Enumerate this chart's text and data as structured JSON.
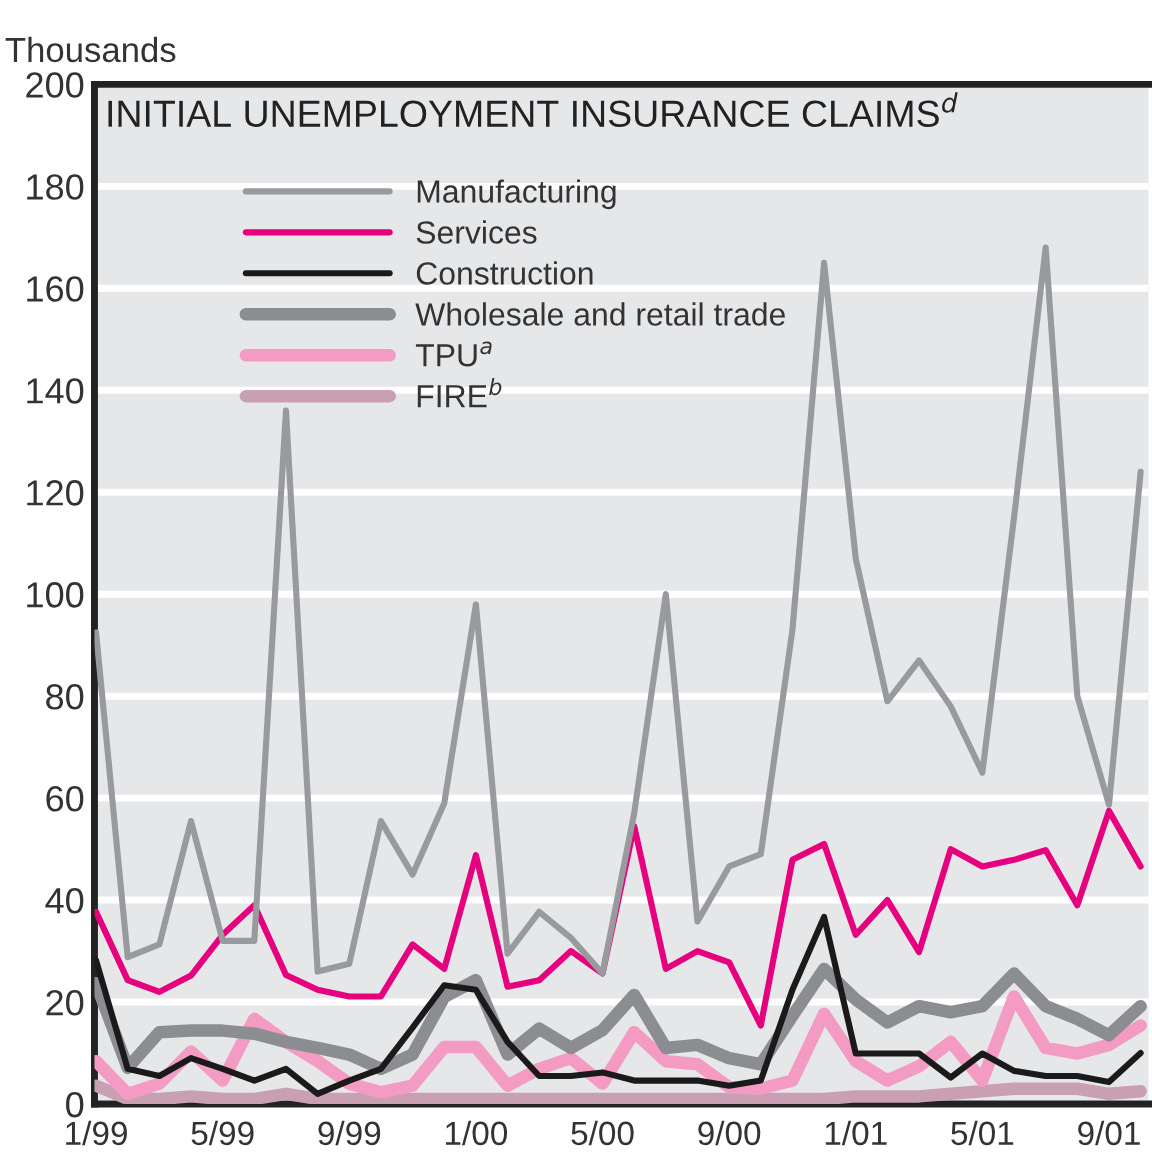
{
  "chart_data": {
    "type": "line",
    "title": "INITIAL UNEMPLOYMENT INSURANCE CLAIMS$^{d}$",
    "ylabel": "Thousands",
    "categories": [
      "1/99",
      null,
      null,
      null,
      "5/99",
      null,
      null,
      null,
      "9/99",
      null,
      null,
      null,
      "1/00",
      null,
      null,
      null,
      "5/00",
      null,
      null,
      null,
      "9/00",
      null,
      null,
      null,
      "1/01",
      null,
      null,
      null,
      "5/01",
      null,
      null,
      null,
      "9/01",
      null
    ],
    "series": [
      {
        "name": "Manufacturing",
        "color": "#999a9e",
        "values": [
          92.5,
          28.8,
          31.3,
          55.5,
          32,
          32,
          136,
          26,
          27.5,
          55.5,
          45,
          59,
          98,
          29.5,
          37.7,
          32.6,
          25.6,
          57,
          100,
          35.8,
          46.6,
          49,
          93,
          165,
          107,
          79,
          87,
          78,
          65,
          115,
          168,
          80,
          58.7,
          124
        ]
      },
      {
        "name": "Services",
        "color": "#e6007e",
        "values": [
          37.7,
          24.3,
          22,
          25.2,
          33.2,
          39,
          25.3,
          22.4,
          21.1,
          21.1,
          31.3,
          26.5,
          48.8,
          23,
          24.3,
          30,
          25.6,
          54.5,
          26.5,
          30,
          27.8,
          15.4,
          47.9,
          51,
          33.2,
          40,
          29.8,
          50,
          46.6,
          47.9,
          49.8,
          39,
          57.5,
          46.6
        ]
      },
      {
        "name": "Construction",
        "color": "#1a1a1a",
        "values": [
          28.2,
          6.9,
          5.5,
          9,
          6.9,
          4.6,
          6.9,
          2,
          4.6,
          6.9,
          15,
          23.3,
          22.4,
          12.2,
          5.5,
          5.5,
          6.2,
          4.6,
          4.6,
          4.6,
          3.6,
          4.6,
          22.4,
          36.7,
          9.9,
          9.9,
          9.9,
          5.2,
          9.9,
          6.5,
          5.5,
          5.5,
          4.3,
          10
        ]
      },
      {
        "name": "Wholesale and retail trade",
        "color": "#8c8d91",
        "values": [
          23.7,
          7.1,
          14.1,
          14.4,
          14.4,
          13.8,
          12.2,
          11,
          9.7,
          6.9,
          9.7,
          21,
          24.3,
          9.7,
          14.8,
          11,
          14.5,
          21.4,
          11,
          11.6,
          9,
          7.8,
          17.3,
          26.5,
          20.5,
          16,
          19.2,
          18,
          19.2,
          25.6,
          19.2,
          16.7,
          13.5,
          19.2
        ]
      },
      {
        "name": "TPU$^{a}$",
        "color": "#f39bc3",
        "values": [
          8.4,
          2,
          4,
          10.3,
          4.6,
          16.7,
          12.2,
          8.4,
          4,
          2.3,
          3.6,
          11.2,
          11.2,
          3.6,
          6.9,
          9,
          4,
          14.1,
          8.4,
          7.8,
          3.3,
          3,
          4.6,
          17.7,
          8.4,
          4.6,
          7.4,
          12.2,
          4.6,
          21.1,
          11,
          9.9,
          11.6,
          15.4
        ]
      },
      {
        "name": "FIRE$^{b}$",
        "color": "#c9a0b2",
        "values": [
          3.6,
          1,
          1,
          1.5,
          1,
          1,
          2,
          1,
          1,
          1,
          1,
          1,
          1,
          1,
          1,
          1,
          1,
          1,
          1,
          1,
          1,
          1,
          1,
          1,
          1.5,
          1.5,
          1.5,
          2,
          2.5,
          3,
          3,
          3,
          2,
          2.5
        ]
      }
    ],
    "ylim": [
      0,
      200
    ],
    "yticks": [
      0,
      20,
      40,
      60,
      80,
      100,
      120,
      140,
      160,
      180,
      200
    ],
    "grid": "y",
    "legend": "top",
    "marker": "none",
    "line_style": "solid"
  }
}
